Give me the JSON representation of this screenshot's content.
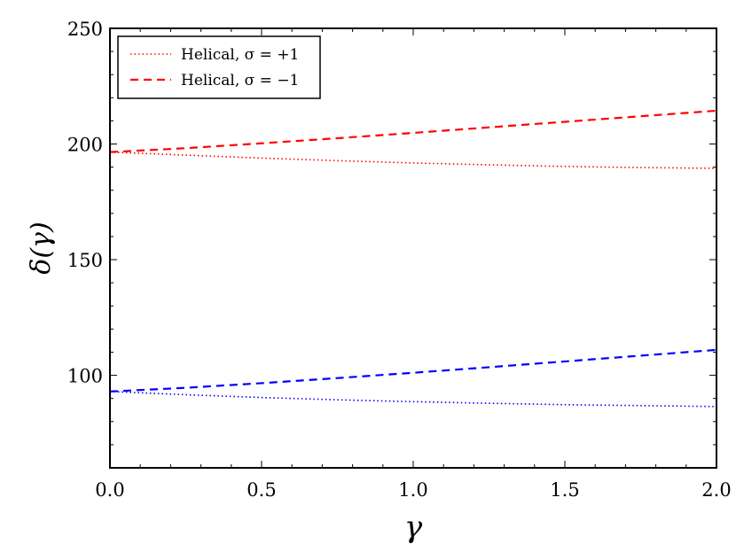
{
  "chart_data": {
    "type": "line",
    "title": "",
    "xlabel": "γ",
    "ylabel": "δ(γ)",
    "xlim": [
      0.0,
      2.0
    ],
    "ylim": [
      60,
      250
    ],
    "xticks": [
      0.0,
      0.5,
      1.0,
      1.5,
      2.0
    ],
    "xtick_labels": [
      "0.0",
      "0.5",
      "1.0",
      "1.5",
      "2.0"
    ],
    "yticks": [
      100,
      150,
      200,
      250
    ],
    "ytick_labels": [
      "100",
      "150",
      "200",
      "250"
    ],
    "grid": false,
    "legend_position": "top-left",
    "legend": [
      {
        "label": "Helical, σ = +1",
        "style": "dotted",
        "color": "#ff0000"
      },
      {
        "label": "Helical, σ = −1",
        "style": "dashed",
        "color": "#ff0000"
      }
    ],
    "series": [
      {
        "color": "#ff0000",
        "style": "dotted",
        "x": [
          0.0,
          0.25,
          0.5,
          0.75,
          1.0,
          1.25,
          1.5,
          1.75,
          2.0
        ],
        "y": [
          196.5,
          195.2,
          193.9,
          192.8,
          191.8,
          191.0,
          190.3,
          189.8,
          189.5
        ]
      },
      {
        "color": "#ff0000",
        "style": "dashed",
        "x": [
          0.0,
          0.25,
          0.5,
          0.75,
          1.0,
          1.25,
          1.5,
          1.75,
          2.0
        ],
        "y": [
          196.5,
          198.2,
          200.3,
          202.5,
          204.8,
          207.2,
          209.6,
          212.0,
          214.4
        ]
      },
      {
        "color": "#0000ff",
        "style": "dotted",
        "x": [
          0.0,
          0.25,
          0.5,
          0.75,
          1.0,
          1.25,
          1.5,
          1.75,
          2.0
        ],
        "y": [
          93.0,
          91.6,
          90.4,
          89.4,
          88.6,
          87.9,
          87.3,
          86.9,
          86.5
        ]
      },
      {
        "color": "#0000ff",
        "style": "dashed",
        "x": [
          0.0,
          0.25,
          0.5,
          0.75,
          1.0,
          1.25,
          1.5,
          1.75,
          2.0
        ],
        "y": [
          93.0,
          94.6,
          96.6,
          98.8,
          101.1,
          103.5,
          106.0,
          108.5,
          111.0
        ]
      }
    ]
  }
}
